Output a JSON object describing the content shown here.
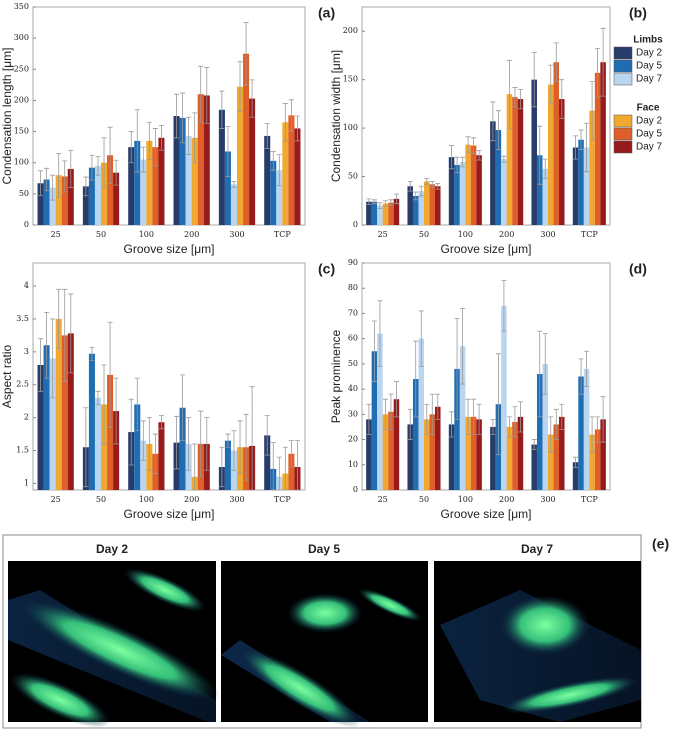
{
  "chart_data": [
    {
      "type": "bar",
      "label": "(a)",
      "x_label": "Groove size [μm]",
      "y_label": "Condensation length [μm]",
      "categories": [
        "25",
        "50",
        "100",
        "200",
        "300",
        "TCP"
      ],
      "ylim": [
        0,
        350
      ],
      "yticks": [
        0,
        50,
        100,
        150,
        200,
        250,
        300,
        350
      ],
      "series": [
        {
          "name": "Day 2",
          "group": "Limbs",
          "color": "#283c6a",
          "values": [
            67,
            62,
            125,
            175,
            185,
            143
          ],
          "errors": [
            20,
            15,
            25,
            35,
            30,
            20
          ]
        },
        {
          "name": "Day 5",
          "group": "Limbs",
          "color": "#1f6db3",
          "values": [
            73,
            92,
            135,
            172,
            118,
            103
          ],
          "errors": [
            18,
            20,
            50,
            40,
            40,
            15
          ]
        },
        {
          "name": "Day 7",
          "group": "Limbs",
          "color": "#b9d5ef",
          "values": [
            60,
            95,
            105,
            143,
            65,
            88
          ],
          "errors": [
            20,
            15,
            20,
            30,
            5,
            25
          ]
        },
        {
          "name": "Day 2",
          "group": "Face",
          "color": "#f0a830",
          "values": [
            80,
            100,
            135,
            140,
            222,
            165
          ],
          "errors": [
            35,
            40,
            30,
            40,
            40,
            30
          ]
        },
        {
          "name": "Day 5",
          "group": "Face",
          "color": "#df5f2a",
          "values": [
            78,
            112,
            125,
            210,
            275,
            176
          ],
          "errors": [
            25,
            45,
            30,
            45,
            50,
            25
          ]
        },
        {
          "name": "Day 7",
          "group": "Face",
          "color": "#981b1b",
          "values": [
            90,
            84,
            140,
            208,
            203,
            155
          ],
          "errors": [
            30,
            20,
            20,
            45,
            30,
            20
          ]
        }
      ]
    },
    {
      "type": "bar",
      "label": "(b)",
      "x_label": "Groove size [μm]",
      "y_label": "Condensation width [μm]",
      "categories": [
        "25",
        "50",
        "100",
        "200",
        "300",
        "TCP"
      ],
      "ylim": [
        0,
        225
      ],
      "yticks": [
        0,
        50,
        100,
        150,
        200
      ],
      "series": [
        {
          "name": "Day 2",
          "group": "Limbs",
          "color": "#283c6a",
          "values": [
            24,
            40,
            70,
            107,
            150,
            80
          ],
          "errors": [
            3,
            5,
            12,
            20,
            28,
            12
          ]
        },
        {
          "name": "Day 5",
          "group": "Limbs",
          "color": "#1f6db3",
          "values": [
            24,
            30,
            62,
            98,
            72,
            88
          ],
          "errors": [
            2,
            4,
            8,
            20,
            30,
            10
          ]
        },
        {
          "name": "Day 7",
          "group": "Limbs",
          "color": "#b9d5ef",
          "values": [
            20,
            35,
            65,
            68,
            58,
            80
          ],
          "errors": [
            3,
            5,
            5,
            3,
            10,
            25
          ]
        },
        {
          "name": "Day 2",
          "group": "Face",
          "color": "#f0a830",
          "values": [
            22,
            45,
            83,
            135,
            145,
            118
          ],
          "errors": [
            3,
            3,
            8,
            35,
            20,
            30
          ]
        },
        {
          "name": "Day 5",
          "group": "Face",
          "color": "#df5f2a",
          "values": [
            23,
            42,
            82,
            132,
            168,
            157
          ],
          "errors": [
            3,
            3,
            8,
            10,
            20,
            25
          ]
        },
        {
          "name": "Day 7",
          "group": "Face",
          "color": "#981b1b",
          "values": [
            27,
            40,
            72,
            130,
            130,
            168
          ],
          "errors": [
            5,
            3,
            5,
            10,
            20,
            35
          ]
        }
      ]
    },
    {
      "type": "bar",
      "label": "(c)",
      "x_label": "Groove size [μm]",
      "y_label": "Aspect ratio",
      "categories": [
        "25",
        "50",
        "100",
        "200",
        "300",
        "TCP"
      ],
      "ylim": [
        0.9,
        4.35
      ],
      "yticks": [
        1,
        1.5,
        2,
        2.5,
        3,
        3.5,
        4
      ],
      "series": [
        {
          "name": "Day 2",
          "group": "Limbs",
          "color": "#283c6a",
          "values": [
            2.8,
            1.55,
            1.78,
            1.62,
            1.25,
            1.73
          ],
          "errors": [
            0.4,
            0.6,
            0.5,
            0.4,
            0.3,
            0.3
          ]
        },
        {
          "name": "Day 5",
          "group": "Limbs",
          "color": "#1f6db3",
          "values": [
            3.1,
            2.97,
            2.2,
            2.15,
            1.65,
            1.22
          ],
          "errors": [
            0.5,
            0.1,
            0.4,
            0.5,
            0.1,
            0.4
          ]
        },
        {
          "name": "Day 7",
          "group": "Limbs",
          "color": "#b9d5ef",
          "values": [
            2.9,
            2.3,
            1.65,
            1.6,
            1.5,
            1.1
          ],
          "errors": [
            0.6,
            0.1,
            0.3,
            0.4,
            0.3,
            0.3
          ]
        },
        {
          "name": "Day 2",
          "group": "Face",
          "color": "#f0a830",
          "values": [
            3.5,
            2.2,
            1.6,
            1.1,
            1.55,
            1.15
          ],
          "errors": [
            0.45,
            0.6,
            0.4,
            0.5,
            0.4,
            0.4
          ]
        },
        {
          "name": "Day 5",
          "group": "Face",
          "color": "#df5f2a",
          "values": [
            3.25,
            2.65,
            1.45,
            1.6,
            1.55,
            1.45
          ],
          "errors": [
            0.7,
            0.8,
            0.3,
            0.5,
            0.5,
            0.2
          ]
        },
        {
          "name": "Day 7",
          "group": "Face",
          "color": "#981b1b",
          "values": [
            3.28,
            2.1,
            1.93,
            1.6,
            1.57,
            1.25
          ],
          "errors": [
            0.6,
            0.5,
            0.1,
            0.4,
            0.9,
            0.4
          ]
        }
      ]
    },
    {
      "type": "bar",
      "label": "(d)",
      "x_label": "Groove size [μm]",
      "y_label": "Peak prominence",
      "categories": [
        "25",
        "50",
        "100",
        "200",
        "300",
        "TCP"
      ],
      "ylim": [
        0,
        90
      ],
      "yticks": [
        0,
        10,
        20,
        30,
        40,
        50,
        60,
        70,
        80,
        90
      ],
      "series": [
        {
          "name": "Day 2",
          "group": "Limbs",
          "color": "#283c6a",
          "values": [
            28,
            26,
            26,
            25,
            18,
            11
          ],
          "errors": [
            6,
            6,
            5,
            3,
            2,
            2
          ]
        },
        {
          "name": "Day 5",
          "group": "Limbs",
          "color": "#1f6db3",
          "values": [
            55,
            44,
            48,
            34,
            46,
            45
          ],
          "errors": [
            12,
            15,
            20,
            20,
            17,
            7
          ]
        },
        {
          "name": "Day 7",
          "group": "Limbs",
          "color": "#b9d5ef",
          "values": [
            62,
            60,
            57,
            73,
            50,
            48
          ],
          "errors": [
            13,
            11,
            15,
            10,
            12,
            7
          ]
        },
        {
          "name": "Day 2",
          "group": "Face",
          "color": "#f0a830",
          "values": [
            30,
            28,
            29,
            25,
            22,
            22
          ],
          "errors": [
            6,
            6,
            7,
            4,
            7,
            7
          ]
        },
        {
          "name": "Day 5",
          "group": "Face",
          "color": "#df5f2a",
          "values": [
            31,
            30,
            29,
            27,
            26,
            24
          ],
          "errors": [
            7,
            8,
            7,
            6,
            6,
            5
          ]
        },
        {
          "name": "Day 7",
          "group": "Face",
          "color": "#981b1b",
          "values": [
            36,
            33,
            28,
            29,
            29,
            28
          ],
          "errors": [
            7,
            5,
            6,
            6,
            5,
            9
          ]
        }
      ]
    }
  ],
  "images": {
    "label": "(e)",
    "panels": [
      "Day 2",
      "Day 5",
      "Day 7"
    ]
  }
}
